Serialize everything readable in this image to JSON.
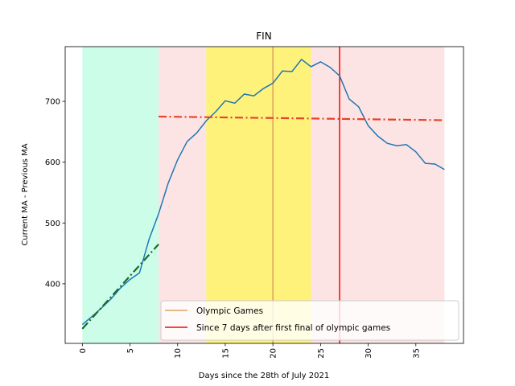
{
  "chart_data": {
    "type": "line",
    "title": "FIN",
    "x_label": "Days since the 28th of July 2021",
    "y_label": "Current MA - Previous MA",
    "x": [
      0,
      1,
      2,
      3,
      4,
      5,
      6,
      7,
      8,
      9,
      10,
      11,
      12,
      13,
      14,
      15,
      16,
      17,
      18,
      19,
      20,
      21,
      22,
      23,
      24,
      25,
      26,
      27,
      28,
      29,
      30,
      31,
      32,
      33,
      34,
      35,
      36,
      37,
      38
    ],
    "series": [
      {
        "color": "#1f77b4",
        "values": [
          333,
          346,
          360,
          375,
          393,
          407,
          418,
          473,
          515,
          565,
          604,
          634,
          648,
          668,
          683,
          701,
          697,
          712,
          709,
          721,
          730,
          750,
          749,
          769,
          757,
          765,
          756,
          742,
          704,
          691,
          660,
          643,
          631,
          627,
          629,
          617,
          598,
          597,
          588
        ]
      }
    ],
    "trend_lines": [
      {
        "x": [
          0,
          8
        ],
        "values": [
          326,
          465
        ],
        "color": "#1a6b2a"
      },
      {
        "x": [
          8,
          38
        ],
        "values": [
          675,
          669
        ],
        "color": "#e8402a"
      }
    ],
    "spans": [
      {
        "start": 0,
        "end": 8,
        "color": "#ccfde8"
      },
      {
        "start": 8,
        "end": 13,
        "color": "#fde4e4"
      },
      {
        "start": 13,
        "end": 24,
        "color": "#fef27b"
      },
      {
        "start": 24,
        "end": 38,
        "color": "#fde4e4"
      }
    ],
    "vlines": [
      {
        "name": "Olympic Games",
        "x": 20,
        "color": "#dba35e"
      },
      {
        "name": "Since 7 days after first final of olympic games",
        "x": 27,
        "color": "#ff0000"
      }
    ],
    "xlim": [
      -1.8,
      40
    ],
    "ylim": [
      302,
      790
    ],
    "xticks": [
      0,
      5,
      10,
      15,
      20,
      25,
      30,
      35
    ],
    "yticks": [
      400,
      500,
      600,
      700
    ],
    "legend": "lower right"
  }
}
